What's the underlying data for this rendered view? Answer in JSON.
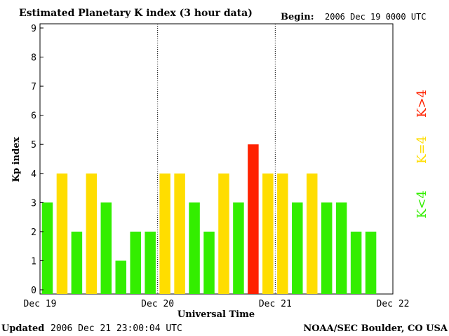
{
  "header": {
    "title": "Estimated Planetary K index (3 hour data)",
    "begin_label": "Begin:",
    "begin_value": "2006 Dec 19 0000 UTC"
  },
  "footer": {
    "updated_label": "Updated",
    "updated_value": "2006 Dec 21 23:00:04 UTC",
    "source": "NOAA/SEC Boulder, CO USA"
  },
  "legend": {
    "below": "K<4",
    "equal": "K=4",
    "above": "K>4"
  },
  "colors": {
    "below": "#33ee00",
    "equal": "#ffdd00",
    "above": "#ff2200"
  },
  "chart_data": {
    "type": "bar",
    "title": "Estimated Planetary K index (3 hour data)",
    "xlabel": "Universal Time",
    "ylabel": "Kp index",
    "ylim": [
      0,
      9
    ],
    "yticks": [
      "0",
      "1",
      "2",
      "3",
      "4",
      "5",
      "6",
      "7",
      "8",
      "9"
    ],
    "day_labels": [
      "Dec 19",
      "Dec 20",
      "Dec 21",
      "Dec 22"
    ],
    "slots_per_day": 8,
    "values": [
      3,
      4,
      2,
      4,
      3,
      1,
      2,
      2,
      4,
      4,
      3,
      2,
      4,
      3,
      5,
      4,
      4,
      3,
      4,
      3,
      3,
      2,
      2
    ],
    "grid": false
  }
}
